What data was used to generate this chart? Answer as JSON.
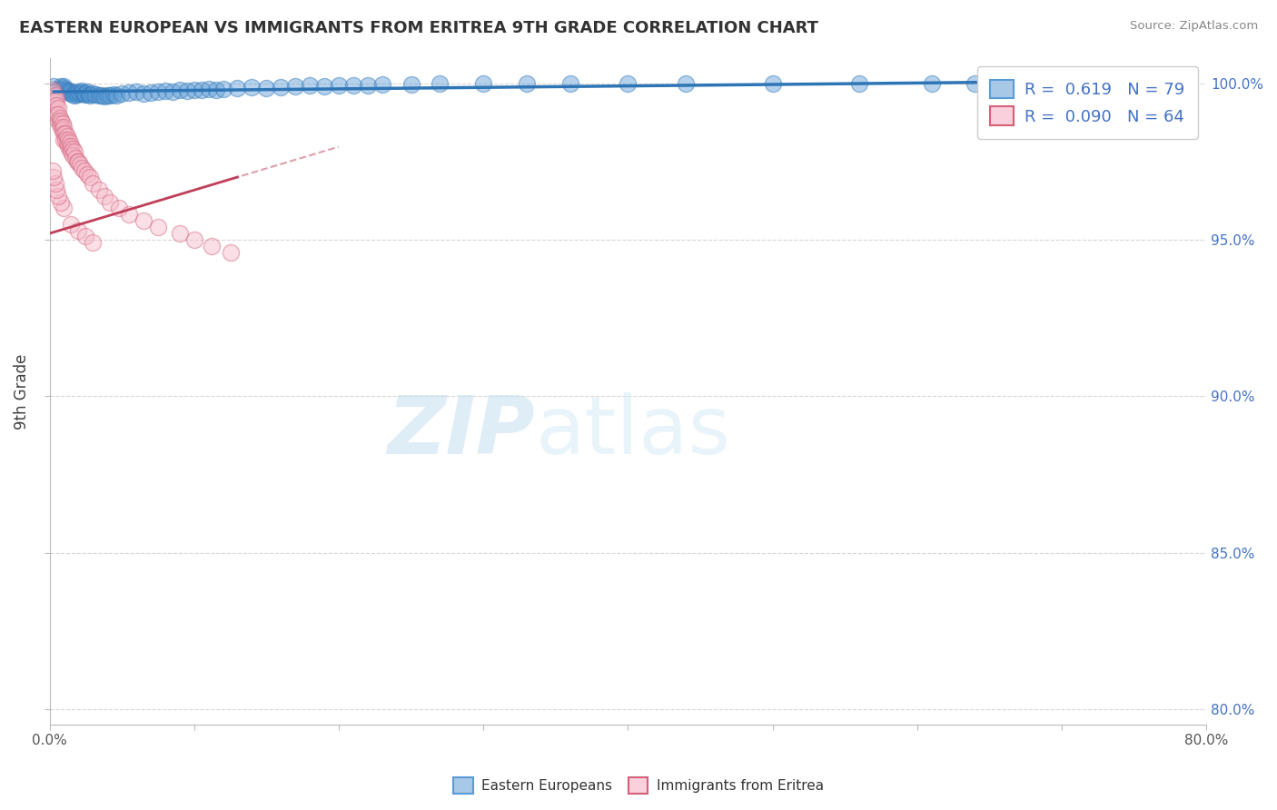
{
  "title": "EASTERN EUROPEAN VS IMMIGRANTS FROM ERITREA 9TH GRADE CORRELATION CHART",
  "source": "Source: ZipAtlas.com",
  "ylabel": "9th Grade",
  "xlim": [
    0.0,
    0.8
  ],
  "ylim": [
    0.795,
    1.008
  ],
  "x_ticks": [
    0.0,
    0.1,
    0.2,
    0.3,
    0.4,
    0.5,
    0.6,
    0.7,
    0.8
  ],
  "x_tick_labels": [
    "0.0%",
    "",
    "",
    "",
    "",
    "",
    "",
    "",
    "80.0%"
  ],
  "y_ticks": [
    0.8,
    0.85,
    0.9,
    0.95,
    1.0
  ],
  "y_tick_labels": [
    "80.0%",
    "85.0%",
    "90.0%",
    "95.0%",
    "100.0%"
  ],
  "legend1_label": "R =  0.619   N = 79",
  "legend2_label": "R =  0.090   N = 64",
  "blue_color": "#5b9bd5",
  "blue_edge": "#2e75b6",
  "pink_color": "#f4b8c8",
  "pink_edge": "#d4607a",
  "blue_line_color": "#2e75b6",
  "pink_line_color": "#c0405a",
  "blue_scatter_x": [
    0.003,
    0.005,
    0.007,
    0.008,
    0.009,
    0.01,
    0.01,
    0.011,
    0.012,
    0.013,
    0.014,
    0.015,
    0.016,
    0.017,
    0.018,
    0.019,
    0.02,
    0.021,
    0.022,
    0.023,
    0.024,
    0.025,
    0.026,
    0.027,
    0.028,
    0.03,
    0.032,
    0.034,
    0.036,
    0.038,
    0.04,
    0.042,
    0.044,
    0.046,
    0.05,
    0.055,
    0.06,
    0.065,
    0.07,
    0.075,
    0.08,
    0.085,
    0.09,
    0.095,
    0.1,
    0.105,
    0.11,
    0.115,
    0.12,
    0.13,
    0.14,
    0.15,
    0.16,
    0.17,
    0.18,
    0.19,
    0.2,
    0.21,
    0.22,
    0.23,
    0.25,
    0.27,
    0.3,
    0.33,
    0.36,
    0.4,
    0.44,
    0.5,
    0.56,
    0.61,
    0.64,
    0.66,
    0.69,
    0.71,
    0.72,
    0.73,
    0.74,
    0.75,
    0.76
  ],
  "blue_scatter_y": [
    0.999,
    0.998,
    0.998,
    0.999,
    0.998,
    0.999,
    0.9985,
    0.998,
    0.9975,
    0.997,
    0.9975,
    0.997,
    0.9965,
    0.996,
    0.997,
    0.9965,
    0.9972,
    0.9968,
    0.9975,
    0.997,
    0.9965,
    0.9968,
    0.9972,
    0.9965,
    0.996,
    0.9968,
    0.9965,
    0.9962,
    0.996,
    0.9958,
    0.9962,
    0.996,
    0.9965,
    0.9962,
    0.9968,
    0.997,
    0.9972,
    0.9968,
    0.997,
    0.9972,
    0.9975,
    0.9972,
    0.9978,
    0.9975,
    0.9978,
    0.998,
    0.9982,
    0.998,
    0.9982,
    0.9985,
    0.9988,
    0.9985,
    0.9988,
    0.999,
    0.9992,
    0.999,
    0.9992,
    0.9994,
    0.9992,
    0.9995,
    0.9996,
    0.9998,
    0.9998,
    1.0,
    1.0,
    1.0,
    1.0,
    1.0,
    1.0,
    1.0,
    1.0,
    1.0,
    1.0,
    1.0,
    1.0,
    1.0,
    1.0,
    1.0,
    1.0
  ],
  "pink_scatter_x": [
    0.002,
    0.003,
    0.003,
    0.004,
    0.004,
    0.005,
    0.005,
    0.005,
    0.006,
    0.006,
    0.006,
    0.007,
    0.007,
    0.008,
    0.008,
    0.009,
    0.009,
    0.01,
    0.01,
    0.01,
    0.011,
    0.011,
    0.012,
    0.012,
    0.013,
    0.013,
    0.014,
    0.014,
    0.015,
    0.015,
    0.016,
    0.016,
    0.017,
    0.018,
    0.019,
    0.02,
    0.021,
    0.022,
    0.024,
    0.026,
    0.028,
    0.03,
    0.034,
    0.038,
    0.042,
    0.048,
    0.055,
    0.065,
    0.075,
    0.09,
    0.1,
    0.112,
    0.125,
    0.01,
    0.008,
    0.006,
    0.005,
    0.004,
    0.003,
    0.002,
    0.015,
    0.02,
    0.025,
    0.03
  ],
  "pink_scatter_y": [
    0.998,
    0.997,
    0.995,
    0.996,
    0.994,
    0.995,
    0.993,
    0.99,
    0.992,
    0.99,
    0.988,
    0.989,
    0.987,
    0.988,
    0.986,
    0.987,
    0.985,
    0.986,
    0.984,
    0.982,
    0.984,
    0.982,
    0.983,
    0.981,
    0.982,
    0.98,
    0.981,
    0.979,
    0.98,
    0.978,
    0.979,
    0.977,
    0.978,
    0.976,
    0.975,
    0.975,
    0.974,
    0.973,
    0.972,
    0.971,
    0.97,
    0.968,
    0.966,
    0.964,
    0.962,
    0.96,
    0.958,
    0.956,
    0.954,
    0.952,
    0.95,
    0.948,
    0.946,
    0.96,
    0.962,
    0.964,
    0.966,
    0.968,
    0.97,
    0.972,
    0.955,
    0.953,
    0.951,
    0.949
  ],
  "watermark_text": "ZIPatlas",
  "bottom_legend_labels": [
    "Eastern Europeans",
    "Immigrants from Eritrea"
  ]
}
